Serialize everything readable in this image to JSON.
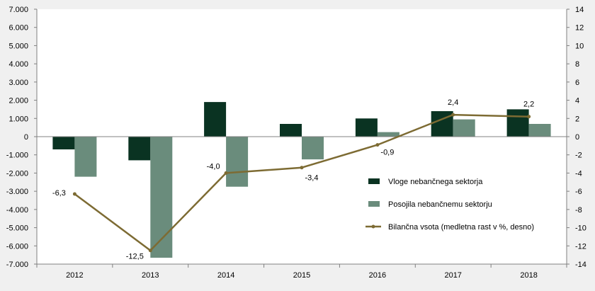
{
  "chart_data": {
    "type": "bar",
    "categories": [
      "2012",
      "2013",
      "2014",
      "2015",
      "2016",
      "2017",
      "2018"
    ],
    "series": [
      {
        "name": "Vloge nebančnega sektorja",
        "kind": "bar",
        "axis": "left",
        "color": "#0a3322",
        "values": [
          -700,
          -1300,
          1900,
          700,
          1000,
          1400,
          1500
        ]
      },
      {
        "name": "Posojila nebančnemu sektorju",
        "kind": "bar",
        "axis": "left",
        "color": "#6a8c7c",
        "values": [
          -2200,
          -6650,
          -2750,
          -1250,
          250,
          950,
          700
        ]
      },
      {
        "name": "Bilančna vsota (medletna rast v %, desno)",
        "kind": "line",
        "axis": "right",
        "color": "#7d6b33",
        "values": [
          -6.3,
          -12.5,
          -4.0,
          -3.4,
          -0.9,
          2.4,
          2.2
        ],
        "labels": [
          "-6,3",
          "-12,5",
          "-4,0",
          "-3,4",
          "-0,9",
          "2,4",
          "2,2"
        ]
      }
    ],
    "y_left": {
      "min": -7000,
      "max": 7000,
      "step": 1000,
      "tick_labels": [
        "7.000",
        "6.000",
        "5.000",
        "4.000",
        "3.000",
        "2.000",
        "1.000",
        "0",
        "-1.000",
        "-2.000",
        "-3.000",
        "-4.000",
        "-5.000",
        "-6.000",
        "-7.000"
      ]
    },
    "y_right": {
      "min": -14,
      "max": 14,
      "step": 2,
      "tick_labels": [
        "14",
        "12",
        "10",
        "8",
        "6",
        "4",
        "2",
        "0",
        "-2",
        "-4",
        "-6",
        "-8",
        "-10",
        "-12",
        "-14"
      ]
    },
    "legend_position": "lower-right",
    "grid": false
  }
}
